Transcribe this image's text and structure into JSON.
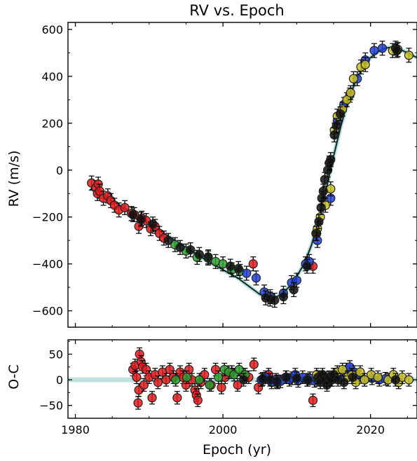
{
  "chart_data": [
    {
      "type": "scatter",
      "title": "RV vs. Epoch",
      "xlabel": "",
      "ylabel": "RV (m/s)",
      "xlim": [
        1979.0,
        2026.3
      ],
      "ylim": [
        -670,
        630
      ],
      "xticks": [
        1980,
        2000,
        2020
      ],
      "yticks": [
        -600,
        -400,
        -200,
        0,
        200,
        400,
        600
      ],
      "yticklabels": [
        "−600",
        "−400",
        "−200",
        "0",
        "200",
        "400",
        "600"
      ],
      "grid": false,
      "model_curve": {
        "x": [
          1982,
          1986,
          1990,
          1994,
          1998,
          2002,
          2005,
          2006.5,
          2008,
          2009.5,
          2011,
          2012,
          2013,
          2014,
          2015,
          2016,
          2017,
          2018,
          2019,
          2020,
          2021,
          2022,
          2023,
          2024,
          2025,
          2026.3
        ],
        "y": [
          -80,
          -150,
          -230,
          -310,
          -390,
          -460,
          -530,
          -550,
          -530,
          -480,
          -400,
          -320,
          -210,
          -80,
          60,
          190,
          300,
          380,
          440,
          480,
          505,
          520,
          525,
          515,
          500,
          480
        ]
      },
      "series": [
        {
          "name": "",
          "color": "#e41a1c",
          "x": [
            1982.2,
            1982.8,
            1983.0,
            1983.1,
            1983.3,
            1983.8,
            1984.4,
            1984.8,
            1985.3,
            1985.9,
            1986.7,
            1987.6,
            1988.0,
            1988.6,
            1989.0,
            1989.6,
            1990.2,
            1990.8,
            1991.4,
            1992.0,
            2004.1,
            2012.2
          ],
          "y": [
            -55,
            -75,
            -100,
            -60,
            -90,
            -120,
            -110,
            -130,
            -150,
            -170,
            -160,
            -185,
            -190,
            -240,
            -205,
            -215,
            -250,
            -240,
            -270,
            -290,
            -400,
            -410
          ]
        },
        {
          "name": "",
          "color": "#2ca02c",
          "x": [
            1993.5,
            1995.0,
            1996.5,
            1998.0,
            1999.0,
            2000.0,
            2001.2,
            2002.3
          ],
          "y": [
            -318,
            -345,
            -372,
            -375,
            -390,
            -400,
            -425,
            -432
          ]
        },
        {
          "name": "",
          "color": "#1f3fd6",
          "x": [
            2003.2,
            2004.5,
            2005.6,
            2006.4,
            2008.2,
            2009.3,
            2010.0,
            2011.2,
            2011.7,
            2012.8,
            2014.6,
            2015.5,
            2016.4,
            2017.2,
            2018.2,
            2019.3,
            2020.5,
            2021.6
          ],
          "y": [
            -440,
            -460,
            -520,
            -540,
            -525,
            -480,
            -470,
            -400,
            -390,
            -300,
            -120,
            210,
            280,
            320,
            390,
            470,
            510,
            520
          ]
        },
        {
          "name": "",
          "color": "#c8c024",
          "x": [
            2012.6,
            2012.8,
            2013.2,
            2013.9,
            2014.6,
            2015.1,
            2015.5,
            2016.2,
            2016.8,
            2017.3,
            2017.7,
            2018.7,
            2019.3,
            2023.0,
            2023.7,
            2025.2
          ],
          "y": [
            -270,
            -250,
            -200,
            -150,
            -80,
            170,
            230,
            260,
            300,
            330,
            390,
            440,
            450,
            510,
            515,
            490
          ]
        },
        {
          "name": "",
          "color": "#111111",
          "x": [
            1987.8,
            1988.9,
            1990.5,
            1992.6,
            1994.2,
            1995.6,
            1996.8,
            1998.0,
            2001.0,
            2002.1,
            2005.8,
            2006.4,
            2007.0,
            2008.2,
            2009.6,
            2011.4,
            2012.7,
            2013.0,
            2013.3,
            2013.4,
            2013.6,
            2013.8,
            2014.2,
            2014.4,
            2014.6,
            2015.1,
            2015.4,
            2015.9,
            2023.4,
            2023.6
          ],
          "y": [
            -190,
            -210,
            -230,
            -300,
            -330,
            -340,
            -360,
            -370,
            -410,
            -420,
            -545,
            -550,
            -555,
            -540,
            -510,
            -410,
            -270,
            -220,
            -160,
            -120,
            -90,
            -40,
            0,
            30,
            45,
            150,
            190,
            240,
            520,
            510
          ]
        }
      ]
    },
    {
      "type": "scatter",
      "title": "",
      "xlabel": "Epoch (yr)",
      "ylabel": "O-C",
      "xlim": [
        1979.0,
        2026.3
      ],
      "ylim": [
        -75,
        78
      ],
      "xticks": [
        1980,
        2000,
        2020
      ],
      "yticks": [
        -50,
        0,
        50
      ],
      "yticklabels": [
        "−50",
        "0",
        "50"
      ],
      "grid": false,
      "series": [
        {
          "name": "",
          "color": "#e41a1c",
          "x": [
            1987.8,
            1988.1,
            1988.3,
            1988.5,
            1988.6,
            1988.7,
            1988.9,
            1989.1,
            1989.3,
            1989.6,
            1990.0,
            1990.4,
            1990.8,
            1991.2,
            1991.8,
            1992.3,
            1992.8,
            1993.3,
            1993.8,
            1994.2,
            1994.6,
            1995.0,
            1995.4,
            1995.8,
            1996.2,
            1996.4,
            1996.6,
            1997.0,
            1997.5,
            1998.4,
            1999.0,
            1999.8,
            2000.3,
            2001.2,
            2002.0,
            2002.8,
            2003.5,
            2004.2,
            2004.8,
            2005.3,
            2006.2,
            2007.4,
            2012.2
          ],
          "y": [
            20,
            28,
            5,
            -45,
            -20,
            50,
            35,
            25,
            -10,
            20,
            5,
            -35,
            10,
            -5,
            15,
            0,
            20,
            5,
            -35,
            15,
            5,
            -10,
            20,
            0,
            -20,
            -30,
            -40,
            -5,
            10,
            -10,
            20,
            -15,
            5,
            15,
            -10,
            10,
            5,
            30,
            -15,
            0,
            10,
            -5,
            -40
          ]
        },
        {
          "name": "",
          "color": "#2ca02c",
          "x": [
            1993.6,
            1995.1,
            1996.8,
            1998.2,
            1999.4,
            2000.2,
            2000.8,
            2001.5,
            2002.2,
            2003.0
          ],
          "y": [
            0,
            5,
            0,
            -10,
            5,
            20,
            15,
            10,
            20,
            10
          ]
        },
        {
          "name": "",
          "color": "#1f3fd6",
          "x": [
            2005.2,
            2005.8,
            2006.6,
            2007.2,
            2007.8,
            2008.5,
            2009.0,
            2009.4,
            2009.8,
            2010.2,
            2010.8,
            2011.4,
            2011.8,
            2012.4,
            2012.8,
            2013.2,
            2014.0,
            2014.6,
            2015.2,
            2016.0,
            2016.7,
            2017.2,
            2017.8,
            2018.4,
            2019.2,
            2020.2,
            2021.2,
            2022.0
          ],
          "y": [
            0,
            5,
            -5,
            0,
            -3,
            5,
            0,
            3,
            10,
            -2,
            5,
            0,
            3,
            -2,
            0,
            5,
            3,
            0,
            10,
            5,
            20,
            25,
            15,
            5,
            0,
            3,
            0,
            2
          ]
        },
        {
          "name": "",
          "color": "#c8c024",
          "x": [
            2012.7,
            2013.4,
            2014.0,
            2014.8,
            2015.5,
            2016.2,
            2016.9,
            2017.5,
            2018.0,
            2018.6,
            2019.2,
            2020.1,
            2021.0,
            2022.4,
            2023.1,
            2023.8,
            2024.3,
            2025.2
          ],
          "y": [
            10,
            5,
            -5,
            0,
            15,
            20,
            5,
            10,
            -5,
            15,
            0,
            10,
            5,
            0,
            10,
            -5,
            5,
            0
          ]
        },
        {
          "name": "",
          "color": "#111111",
          "x": [
            2002.8,
            2005.4,
            2006.4,
            2007.3,
            2008.6,
            2010.0,
            2011.5,
            2012.9,
            2013.2,
            2013.5,
            2013.8,
            2014.1,
            2014.4,
            2014.7,
            2015.0,
            2015.6,
            2016.4,
            2017.6,
            2023.4
          ],
          "y": [
            0,
            2,
            0,
            -3,
            5,
            3,
            0,
            5,
            -5,
            10,
            0,
            -10,
            5,
            0,
            10,
            0,
            -5,
            5,
            0
          ]
        }
      ]
    }
  ]
}
